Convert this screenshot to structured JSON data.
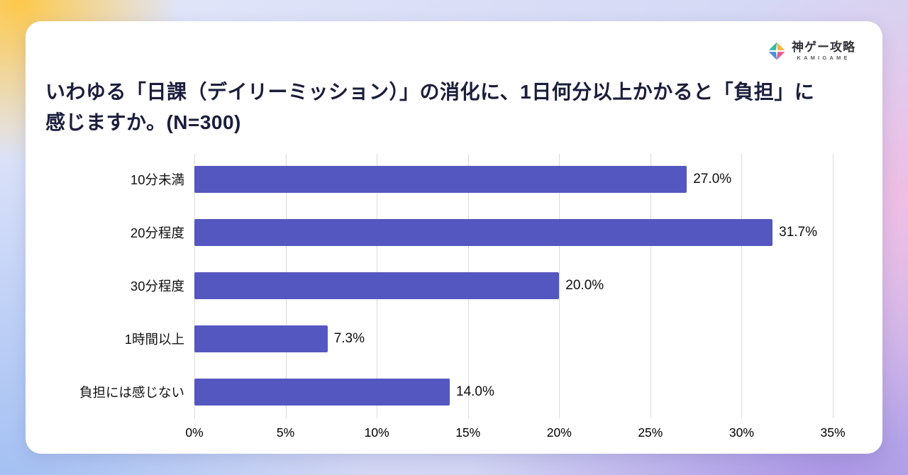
{
  "page": {
    "logo": {
      "name": "神ゲー攻略",
      "subtitle": "KAMIGAME"
    },
    "title": "いわゆる「日課（デイリーミッション）」の消化に、1日何分以上かかると「負担」に感じますか。(N=300)"
  },
  "chart_data": {
    "type": "bar",
    "orientation": "horizontal",
    "title": "いわゆる「日課（デイリーミッション）」の消化に、1日何分以上かかると「負担」に感じますか。(N=300)",
    "categories": [
      "10分未満",
      "20分程度",
      "30分程度",
      "1時間以上",
      "負担には感じない"
    ],
    "values": [
      27.0,
      31.7,
      20.0,
      7.3,
      14.0
    ],
    "value_labels": [
      "27.0%",
      "31.7%",
      "20.0%",
      "7.3%",
      "14.0%"
    ],
    "xlim": [
      0,
      35
    ],
    "x_ticks": [
      0,
      5,
      10,
      15,
      20,
      25,
      30,
      35
    ],
    "x_tick_labels": [
      "0%",
      "5%",
      "10%",
      "15%",
      "20%",
      "25%",
      "30%",
      "35%"
    ],
    "bar_color": "#5557c0",
    "grid": true,
    "legend": "none"
  },
  "logo_colors": {
    "left": "#3bb8a8",
    "top": "#f4b63f",
    "right": "#ea5a8f",
    "bottom": "#4a90d9"
  }
}
